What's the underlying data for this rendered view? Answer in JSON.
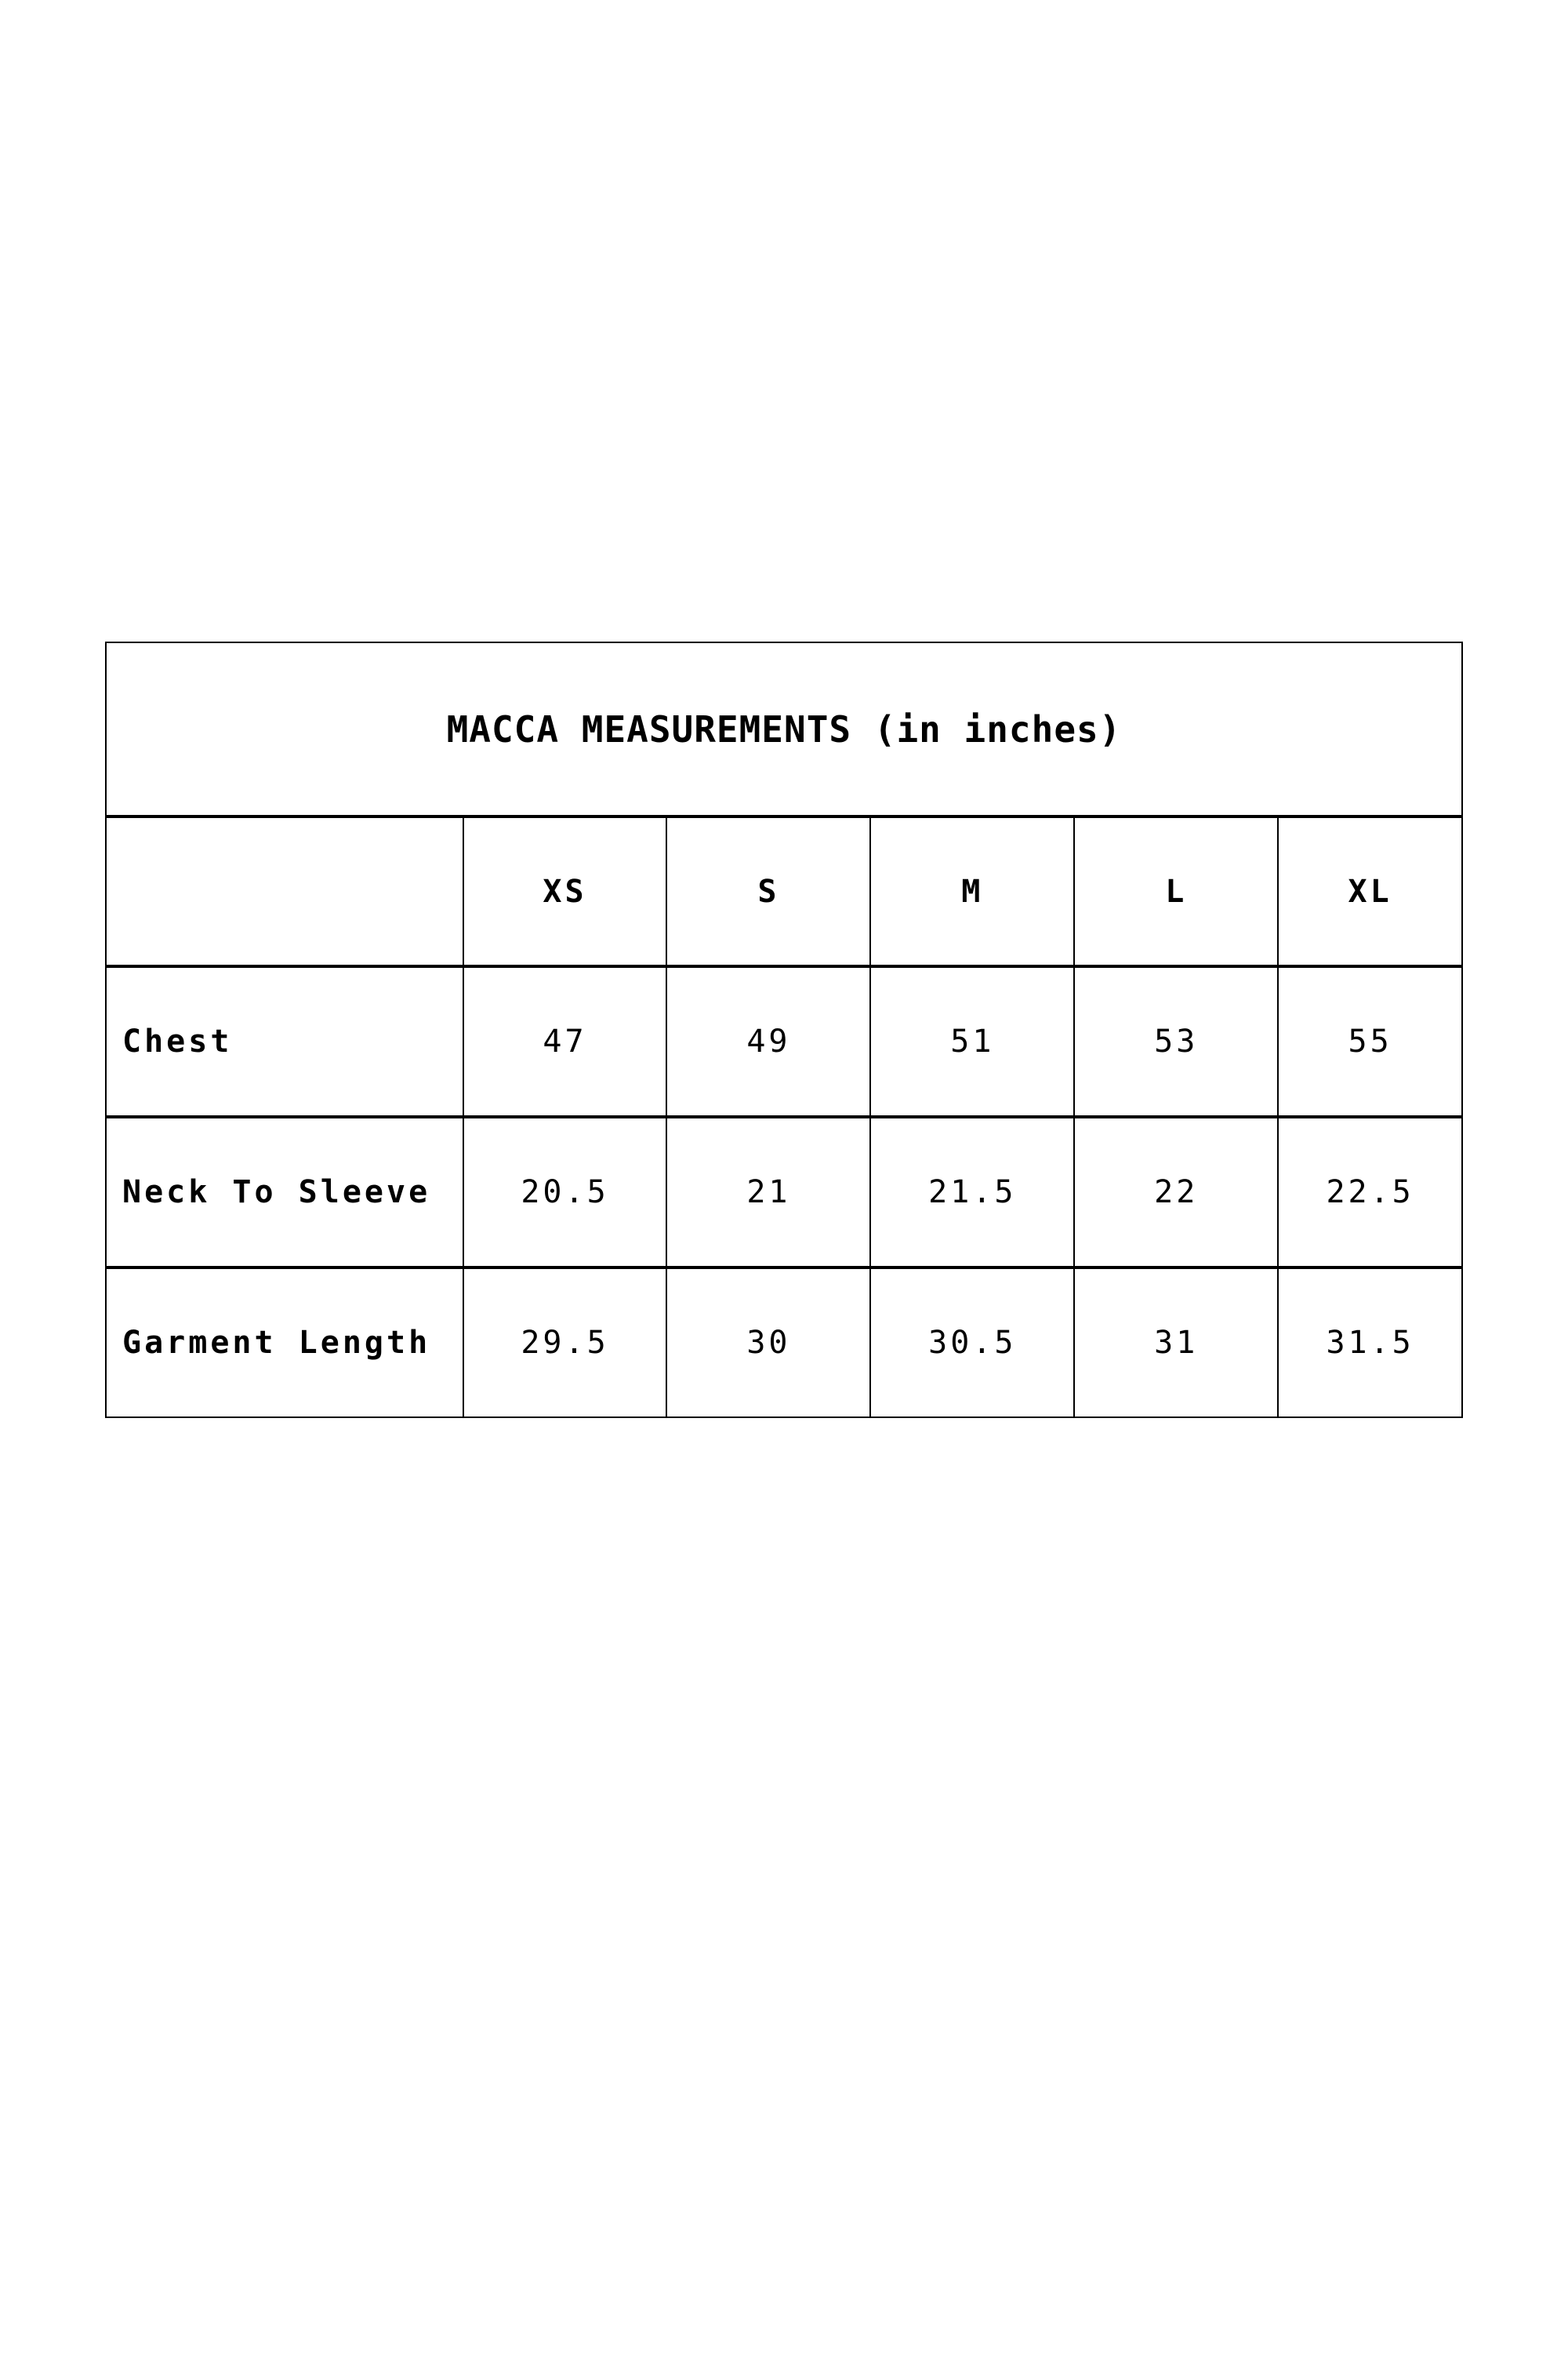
{
  "colors": {
    "background": "#ffffff",
    "border": "#000000",
    "text": "#000000"
  },
  "chart_data": {
    "type": "table",
    "title": "MACCA MEASUREMENTS (in inches)",
    "units": "inches",
    "columns": [
      "XS",
      "S",
      "M",
      "L",
      "XL"
    ],
    "rows": [
      {
        "label": "Chest",
        "values": [
          "47",
          "49",
          "51",
          "53",
          "55"
        ]
      },
      {
        "label": "Neck To Sleeve",
        "values": [
          "20.5",
          "21",
          "21.5",
          "22",
          "22.5"
        ]
      },
      {
        "label": "Garment Length",
        "values": [
          "29.5",
          "30",
          "30.5",
          "31",
          "31.5"
        ]
      }
    ]
  }
}
